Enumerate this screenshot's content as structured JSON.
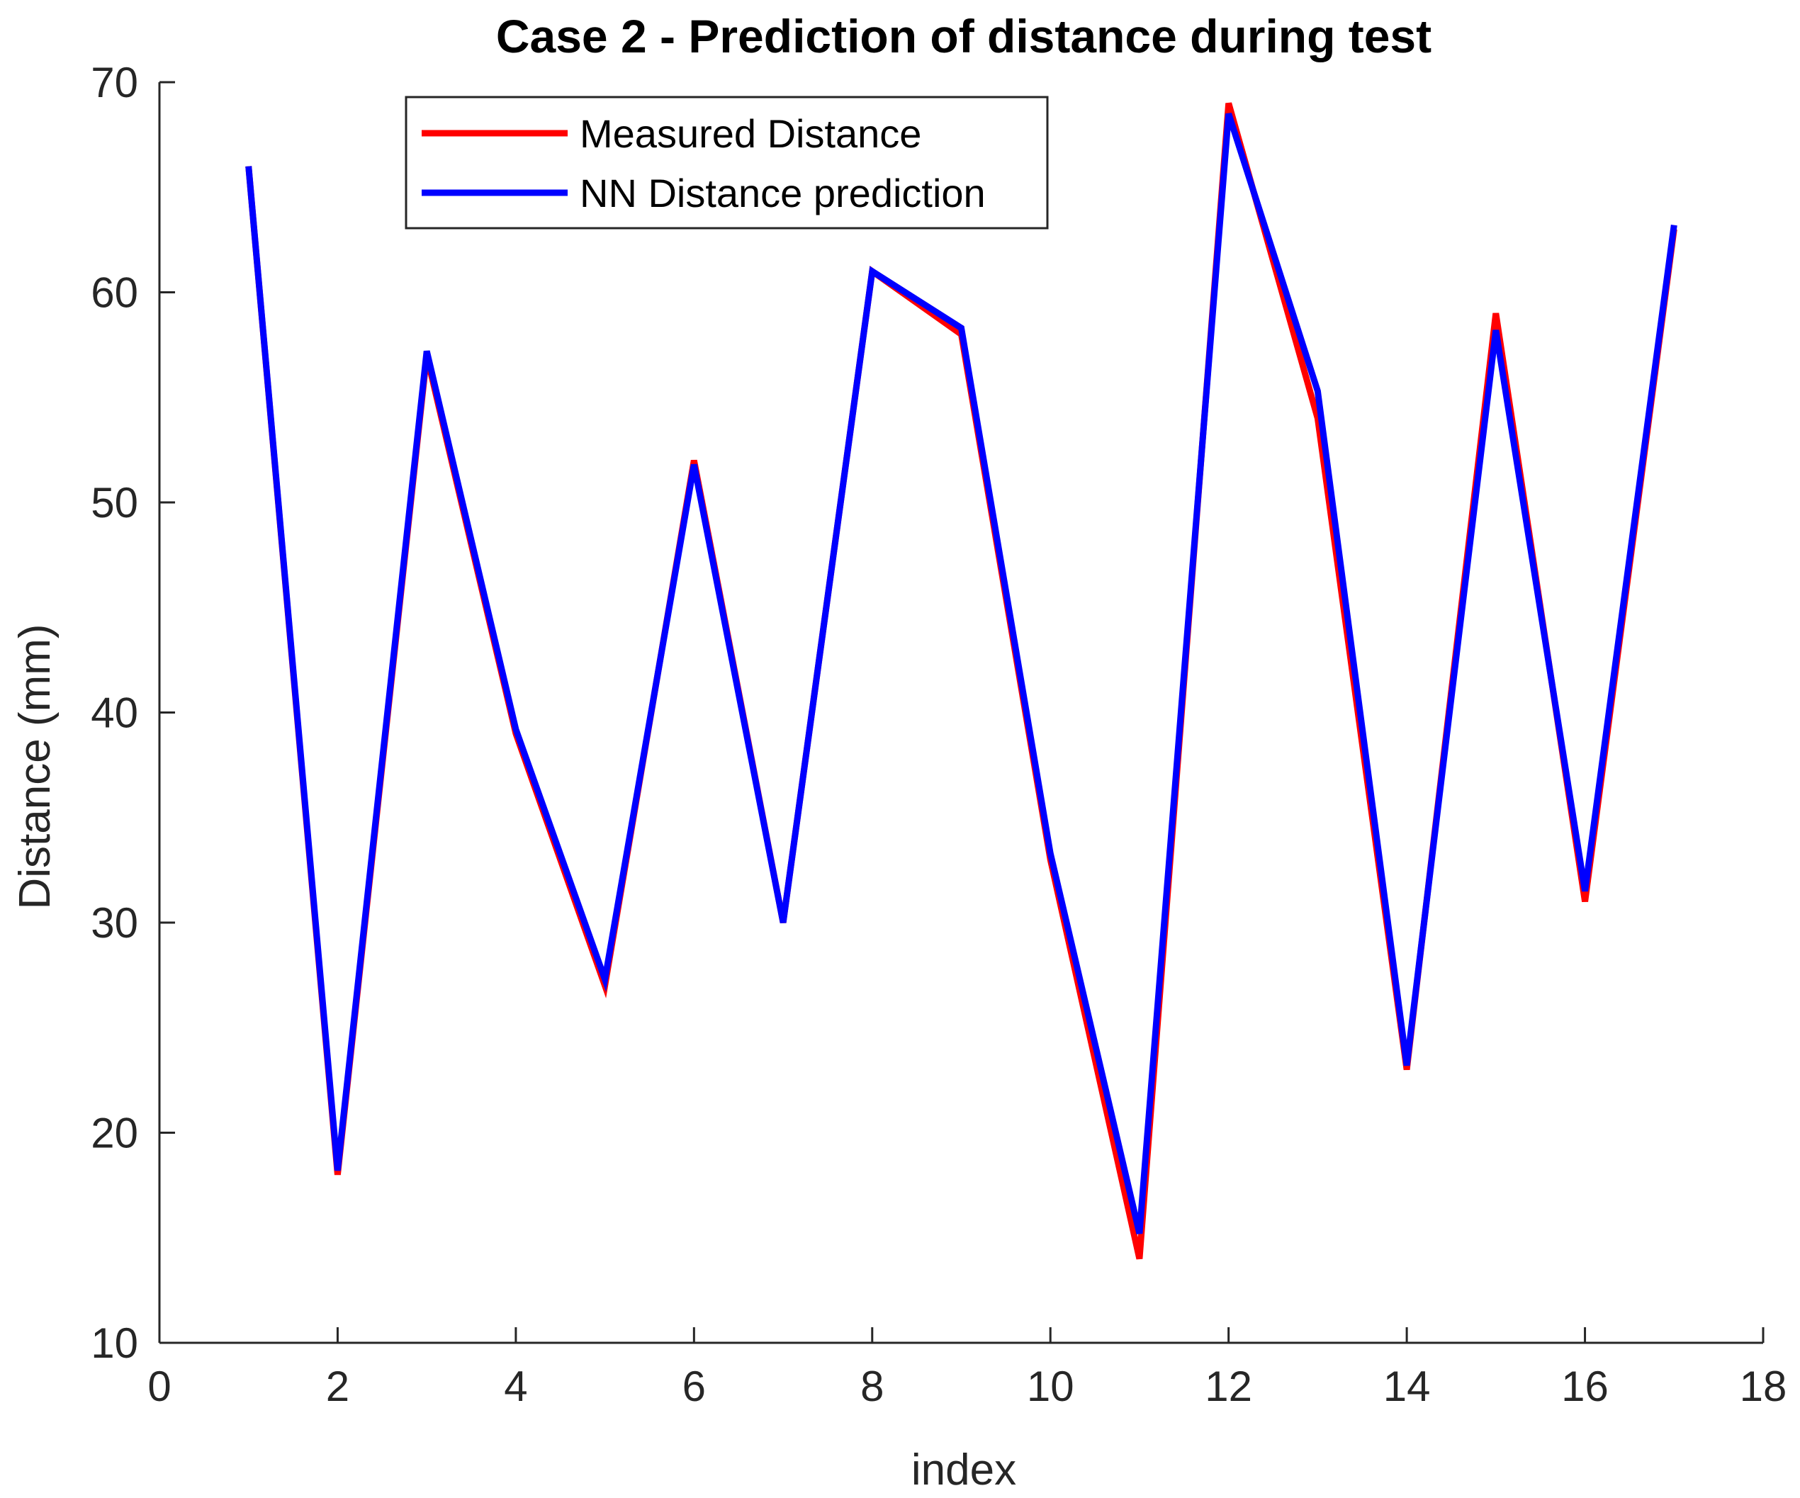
{
  "chart_data": {
    "type": "line",
    "title": "Case 2 - Prediction of distance during test",
    "xlabel": "index",
    "ylabel": "Distance (mm)",
    "xlim": [
      0,
      18
    ],
    "ylim": [
      10,
      70
    ],
    "xticks": [
      0,
      2,
      4,
      6,
      8,
      10,
      12,
      14,
      16,
      18
    ],
    "yticks": [
      10,
      20,
      30,
      40,
      50,
      60,
      70
    ],
    "grid": false,
    "legend_position": "top-left",
    "x": [
      1,
      2,
      3,
      4,
      5,
      6,
      7,
      8,
      9,
      10,
      11,
      12,
      13,
      14,
      15,
      16,
      17
    ],
    "series": [
      {
        "name": "Measured Distance",
        "color": "#ff0000",
        "values": [
          66,
          18,
          57,
          39,
          27,
          52,
          30,
          61,
          58,
          33,
          14,
          69,
          54,
          23,
          59,
          31,
          63
        ]
      },
      {
        "name": "NN Distance prediction",
        "color": "#0000ff",
        "values": [
          66,
          18.2,
          57.2,
          39.2,
          27.3,
          51.8,
          30,
          61,
          58.3,
          33.3,
          15.2,
          68.5,
          55.3,
          23.2,
          58.2,
          31.5,
          63.2
        ]
      }
    ]
  }
}
